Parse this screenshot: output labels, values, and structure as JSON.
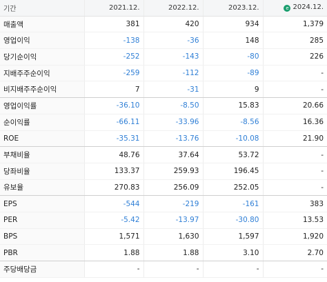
{
  "header": {
    "label": "기간",
    "periods": [
      "2021.12.",
      "2022.12.",
      "2023.12.",
      "2024.12."
    ],
    "estimate_icon": "e"
  },
  "colors": {
    "negative": "#2f7fd6",
    "positive": "#222222",
    "estimate_badge": "#1a9e6e"
  },
  "rows": [
    {
      "label": "매출액",
      "values": [
        "381",
        "420",
        "934",
        "1,379"
      ],
      "group_end": false
    },
    {
      "label": "영업이익",
      "values": [
        "-138",
        "-36",
        "148",
        "285"
      ],
      "group_end": false
    },
    {
      "label": "당기순이익",
      "values": [
        "-252",
        "-143",
        "-80",
        "226"
      ],
      "group_end": false
    },
    {
      "label": "지배주주순이익",
      "values": [
        "-259",
        "-112",
        "-89",
        "-"
      ],
      "group_end": false
    },
    {
      "label": "비지배주주순이익",
      "values": [
        "7",
        "-31",
        "9",
        "-"
      ],
      "group_end": true
    },
    {
      "label": "영업이익률",
      "values": [
        "-36.10",
        "-8.50",
        "15.83",
        "20.66"
      ],
      "group_end": false
    },
    {
      "label": "순이익률",
      "values": [
        "-66.11",
        "-33.96",
        "-8.56",
        "16.36"
      ],
      "group_end": false
    },
    {
      "label": "ROE",
      "values": [
        "-35.31",
        "-13.76",
        "-10.08",
        "21.90"
      ],
      "group_end": true
    },
    {
      "label": "부채비율",
      "values": [
        "48.76",
        "37.64",
        "53.72",
        "-"
      ],
      "group_end": false
    },
    {
      "label": "당좌비율",
      "values": [
        "133.37",
        "259.93",
        "196.45",
        "-"
      ],
      "group_end": false
    },
    {
      "label": "유보율",
      "values": [
        "270.83",
        "256.09",
        "252.05",
        "-"
      ],
      "group_end": true
    },
    {
      "label": "EPS",
      "values": [
        "-544",
        "-219",
        "-161",
        "383"
      ],
      "group_end": false
    },
    {
      "label": "PER",
      "values": [
        "-5.42",
        "-13.97",
        "-30.80",
        "13.53"
      ],
      "group_end": false
    },
    {
      "label": "BPS",
      "values": [
        "1,571",
        "1,630",
        "1,597",
        "1,920"
      ],
      "group_end": false
    },
    {
      "label": "PBR",
      "values": [
        "1.88",
        "1.88",
        "3.10",
        "2.70"
      ],
      "group_end": true
    },
    {
      "label": "주당배당금",
      "values": [
        "-",
        "-",
        "-",
        "-"
      ],
      "group_end": false
    }
  ]
}
